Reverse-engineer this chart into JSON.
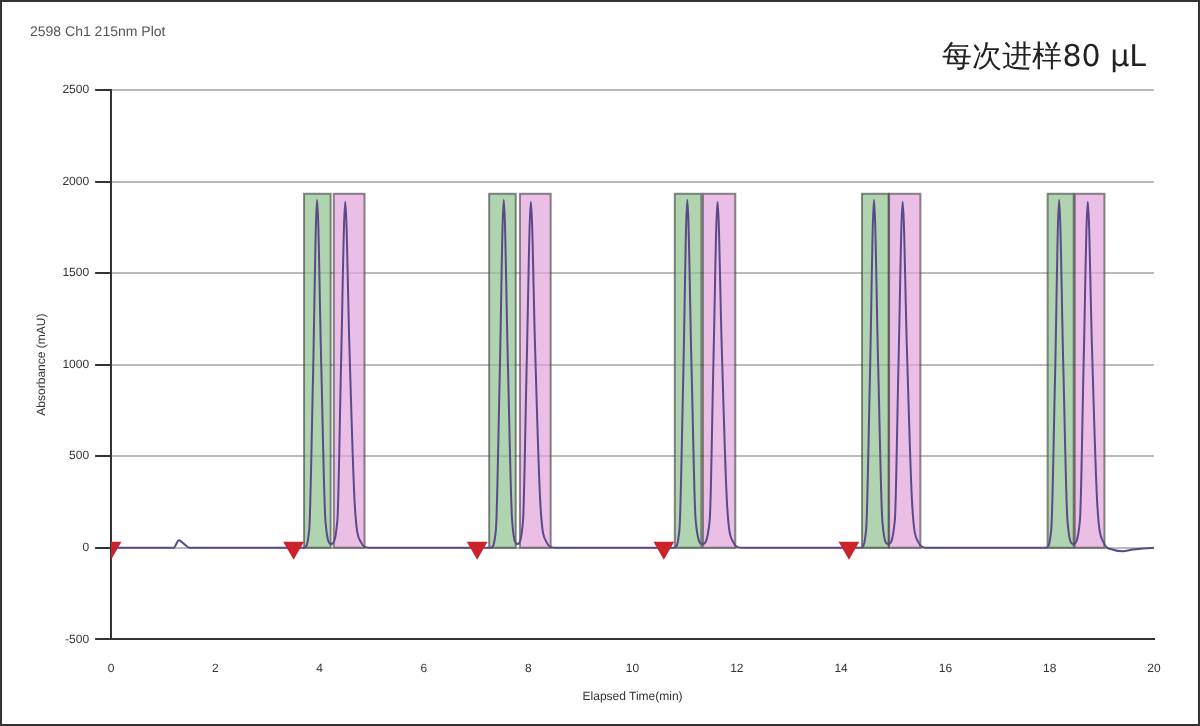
{
  "chart_data": {
    "type": "line",
    "title": "2598 Ch1 215nm Plot",
    "xlabel": "Elapsed Time(min)",
    "ylabel": "Absorbance (mAU)",
    "annotations": [
      "每次进样80 µL"
    ],
    "xlim": [
      0,
      20
    ],
    "xticks": [
      0,
      2,
      4,
      6,
      8,
      10,
      12,
      14,
      16,
      18,
      20
    ],
    "ylim": [
      -500,
      2500
    ],
    "yticks": [
      -500,
      0,
      500,
      1000,
      1500,
      2000,
      2500
    ],
    "grid": "y",
    "legend": false,
    "series": [
      {
        "color": "#5a4a8a",
        "marker": "none",
        "x": [
          0,
          1.2,
          1.3,
          1.4,
          1.5,
          3.7,
          3.8,
          3.87,
          3.95,
          4.03,
          4.11,
          4.22,
          4.34,
          4.41,
          4.49,
          4.57,
          4.67,
          4.79,
          4.94,
          7.28,
          7.38,
          7.45,
          7.53,
          7.61,
          7.69,
          7.79,
          7.9,
          7.97,
          8.05,
          8.13,
          8.23,
          8.35,
          8.5,
          10.8,
          10.9,
          10.97,
          11.05,
          11.13,
          11.21,
          11.34,
          11.48,
          11.55,
          11.63,
          11.71,
          11.81,
          11.93,
          12.08,
          14.38,
          14.48,
          14.55,
          14.63,
          14.71,
          14.79,
          14.9,
          15.03,
          15.1,
          15.18,
          15.26,
          15.36,
          15.48,
          15.63,
          17.93,
          18.03,
          18.1,
          18.18,
          18.26,
          18.34,
          18.45,
          18.58,
          18.65,
          18.73,
          18.81,
          18.91,
          19.03,
          19.2,
          19.4,
          19.6,
          20
        ],
        "values": [
          0,
          0,
          40,
          20,
          0,
          0,
          100,
          900,
          1900,
          1000,
          150,
          20,
          150,
          1000,
          1890,
          1100,
          250,
          30,
          0,
          0,
          100,
          900,
          1900,
          1000,
          150,
          20,
          150,
          1000,
          1890,
          1100,
          250,
          30,
          0,
          0,
          100,
          900,
          1900,
          1000,
          150,
          20,
          150,
          1000,
          1890,
          1100,
          250,
          30,
          0,
          0,
          100,
          900,
          1900,
          1000,
          150,
          20,
          150,
          1000,
          1890,
          1100,
          250,
          30,
          0,
          0,
          100,
          900,
          1900,
          1000,
          150,
          20,
          150,
          1000,
          1890,
          1100,
          250,
          30,
          -10,
          -20,
          -10,
          0
        ]
      },
      {
        "type": "scatter",
        "color": "#cc2229",
        "marker": "triangle",
        "x": [
          0,
          3.5,
          7.02,
          10.6,
          14.15
        ],
        "values": [
          0,
          0,
          0,
          0,
          0
        ]
      }
    ],
    "bands": [
      {
        "axis": "x",
        "from": 3.7,
        "to": 4.21,
        "color": "#8fc08f"
      },
      {
        "axis": "x",
        "from": 4.27,
        "to": 4.86,
        "color": "#e3a3dc"
      },
      {
        "axis": "x",
        "from": 7.25,
        "to": 7.76,
        "color": "#8fc08f"
      },
      {
        "axis": "x",
        "from": 7.84,
        "to": 8.43,
        "color": "#e3a3dc"
      },
      {
        "axis": "x",
        "from": 10.81,
        "to": 11.32,
        "color": "#8fc08f"
      },
      {
        "axis": "x",
        "from": 11.35,
        "to": 11.97,
        "color": "#e3a3dc"
      },
      {
        "axis": "x",
        "from": 14.4,
        "to": 14.91,
        "color": "#8fc08f"
      },
      {
        "axis": "x",
        "from": 14.92,
        "to": 15.52,
        "color": "#e3a3dc"
      },
      {
        "axis": "x",
        "from": 17.96,
        "to": 18.46,
        "color": "#8fc08f"
      },
      {
        "axis": "x",
        "from": 18.48,
        "to": 19.05,
        "color": "#e3a3dc"
      }
    ]
  }
}
